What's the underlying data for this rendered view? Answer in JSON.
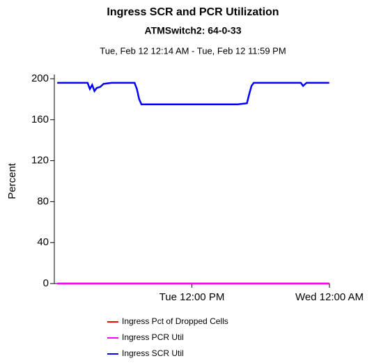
{
  "chart_data": {
    "type": "line",
    "title": "Ingress SCR and PCR Utilization",
    "subtitle": "ATMSwitch2: 64-0-33",
    "date_range": "Tue, Feb 12 12:14 AM - Tue, Feb 12 11:59 PM",
    "y_label": "Percent",
    "x": [
      0.25,
      1,
      2,
      2.9,
      3.1,
      3.3,
      3.5,
      3.7,
      4,
      4.3,
      5,
      6,
      7,
      7.2,
      7.4,
      7.6,
      8,
      10,
      12,
      14,
      16,
      16.8,
      17,
      17.2,
      17.4,
      18,
      20,
      21.5,
      21.7,
      22,
      23,
      23.98
    ],
    "xlim": [
      0,
      24
    ],
    "xticks": [
      {
        "value": 12,
        "label": "Tue 12:00 PM"
      },
      {
        "value": 24,
        "label": "Wed 12:00 AM"
      }
    ],
    "ylim": [
      0,
      200
    ],
    "yticks": [
      0,
      40,
      80,
      120,
      160,
      200
    ],
    "series": [
      {
        "name": "Ingress Pct of Dropped Cells",
        "color": "#ff0000",
        "values": [
          0,
          0,
          0,
          0,
          0,
          0,
          0,
          0,
          0,
          0,
          0,
          0,
          0,
          0,
          0,
          0,
          0,
          0,
          0,
          0,
          0,
          0,
          0,
          0,
          0,
          0,
          0,
          0,
          0,
          0,
          0,
          0
        ]
      },
      {
        "name": "Ingress PCR Util",
        "color": "#ff00ff",
        "values": [
          0,
          0,
          0,
          0,
          0,
          0,
          0,
          0,
          0,
          0,
          0,
          0,
          0,
          0,
          0,
          0,
          0,
          0,
          0,
          0,
          0,
          0,
          0,
          0,
          0,
          0,
          0,
          0,
          0,
          0,
          0,
          0
        ]
      },
      {
        "name": "Ingress SCR Util",
        "color": "#0000ff",
        "values": [
          196,
          196,
          196,
          196,
          190,
          194,
          188,
          191,
          192,
          195,
          196,
          196,
          196,
          190,
          180,
          175,
          175,
          175,
          175,
          175,
          175,
          176,
          185,
          193,
          196,
          196,
          196,
          196,
          193,
          196,
          196,
          196
        ]
      }
    ]
  }
}
